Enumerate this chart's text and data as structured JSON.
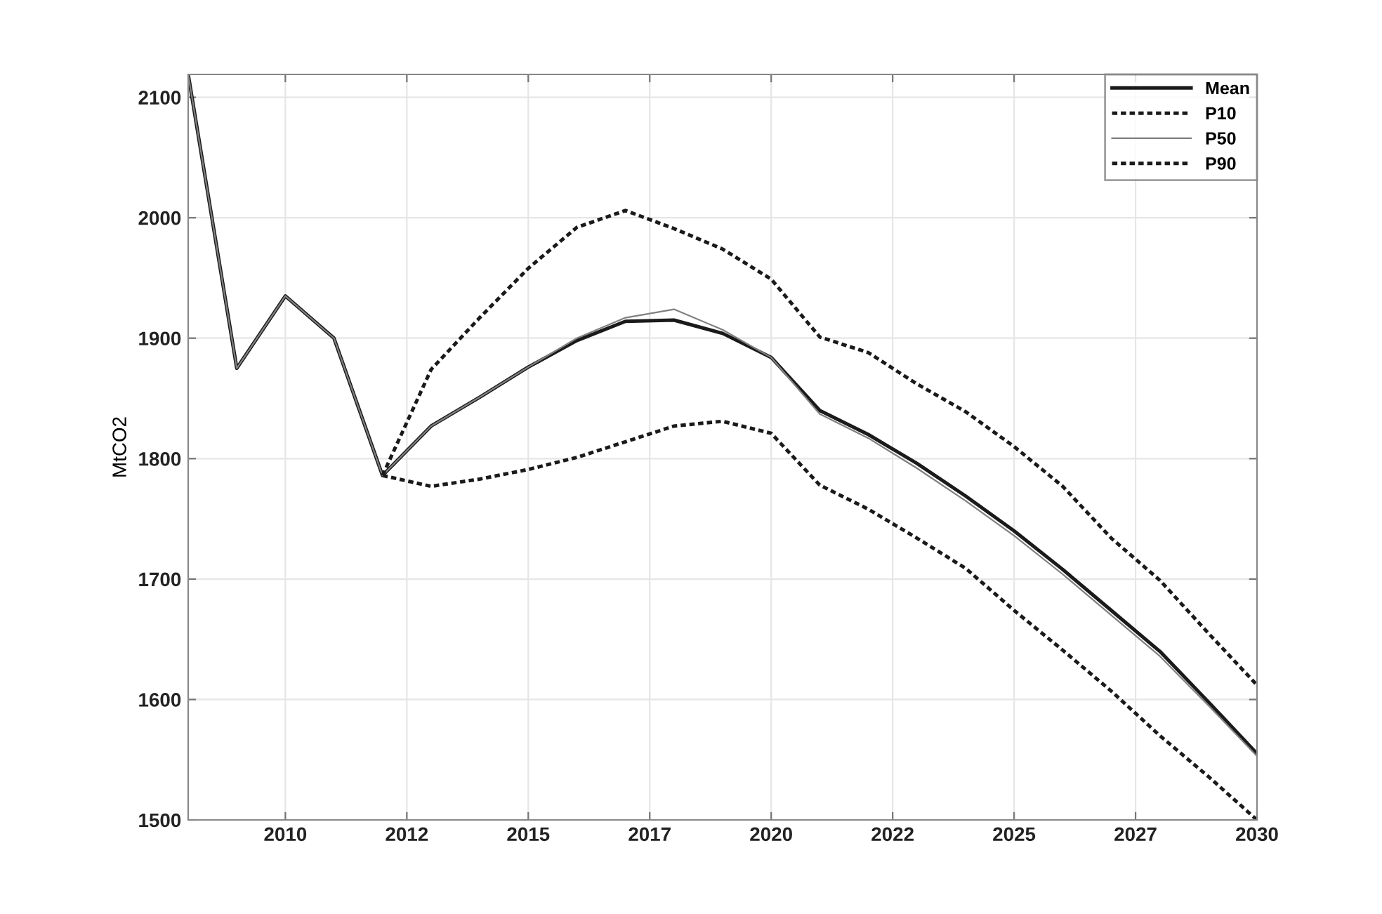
{
  "chart_data": {
    "type": "line",
    "ylabel": "MtCO2",
    "x": [
      2008,
      2009,
      2010,
      2011,
      2012,
      2013,
      2014,
      2015,
      2016,
      2017,
      2018,
      2019,
      2020,
      2021,
      2022,
      2023,
      2024,
      2025,
      2026,
      2027,
      2028,
      2029,
      2030
    ],
    "series": [
      {
        "name": "Mean",
        "color": "#1a1a1a",
        "line_style": "solid",
        "values": [
          2119,
          1875,
          1935,
          1900,
          1786,
          1827,
          1851,
          1876,
          1898,
          1914,
          1915,
          1904,
          1884,
          1840,
          1820,
          1796,
          1769,
          1740,
          1708,
          1674,
          1640,
          1598,
          1555
        ]
      },
      {
        "name": "P10",
        "color": "#1a1a1a",
        "line_style": "dotted",
        "values": [
          null,
          null,
          null,
          null,
          1786,
          1777,
          1783,
          1791,
          1801,
          1814,
          1827,
          1831,
          1821,
          1778,
          1758,
          1734,
          1709,
          1674,
          1641,
          1607,
          1570,
          1536,
          1500
        ]
      },
      {
        "name": "P50",
        "color": "#808080",
        "line_style": "solid",
        "values": [
          2119,
          1875,
          1935,
          1900,
          1786,
          1827,
          1851,
          1876,
          1900,
          1917,
          1924,
          1907,
          1884,
          1837,
          1817,
          1792,
          1765,
          1736,
          1704,
          1670,
          1636,
          1595,
          1553
        ]
      },
      {
        "name": "P90",
        "color": "#1a1a1a",
        "line_style": "dotted",
        "values": [
          null,
          null,
          null,
          null,
          1786,
          1874,
          1917,
          1958,
          1992,
          2006,
          1991,
          1974,
          1949,
          1901,
          1888,
          1862,
          1839,
          1810,
          1777,
          1734,
          1699,
          1655,
          1612
        ]
      }
    ],
    "xlim": [
      2008,
      2030
    ],
    "xticks": [
      2010,
      {
        "value": 2012.5,
        "label": "2012"
      },
      2015,
      {
        "value": 2017.5,
        "label": "2017"
      },
      2020,
      {
        "value": 2022.5,
        "label": "2022"
      },
      2025,
      {
        "value": 2027.5,
        "label": "2027"
      },
      2030
    ],
    "ylim": [
      1500,
      2119
    ],
    "yticks": [
      1500,
      1600,
      1700,
      1800,
      1900,
      2000,
      2100
    ],
    "grid": true,
    "legend": "top right",
    "marker": "none"
  }
}
